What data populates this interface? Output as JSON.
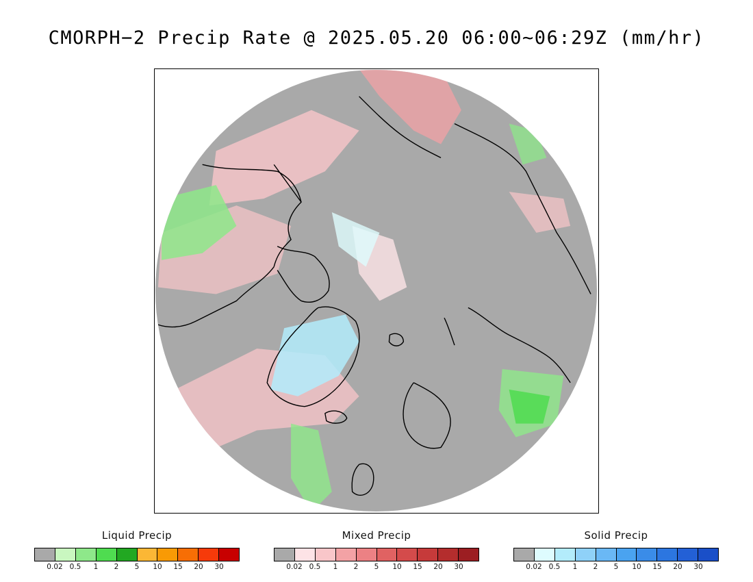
{
  "title": "CMORPH−2 Precip Rate @ 2025.05.20 06:00~06:29Z (mm/hr)",
  "map": {
    "projection": "north polar stereographic",
    "disk_color": "#a9a9a9",
    "coastline_color": "#000000",
    "regions": [
      {
        "name": "alaska-siberia-mixed-band",
        "type": "mixed",
        "color": "#f4c6c6"
      },
      {
        "name": "greenland-solid-area",
        "type": "solid",
        "color": "#cdeef7"
      },
      {
        "name": "scandinavia-liquid-area",
        "type": "liquid",
        "color": "#8ee68e"
      },
      {
        "name": "north-atlantic-mixed-band",
        "type": "mixed",
        "color": "#f6d0d0"
      }
    ]
  },
  "legends": [
    {
      "name": "liquid",
      "title": "Liquid Precip",
      "colors": [
        "#a9a9a9",
        "#c9f7c0",
        "#8ee88a",
        "#4fdc50",
        "#22a822",
        "#fbb735",
        "#f99a05",
        "#f76e05",
        "#f63a0a",
        "#c80000"
      ],
      "ticks": [
        "0.02",
        "0.5",
        "1",
        "2",
        "5",
        "10",
        "15",
        "20",
        "30"
      ]
    },
    {
      "name": "mixed",
      "title": "Mixed Precip",
      "colors": [
        "#a9a9a9",
        "#fde3e6",
        "#f9c6c9",
        "#f3a2a5",
        "#ec8184",
        "#e06262",
        "#d44b4b",
        "#c63a3a",
        "#b42d2d",
        "#9c1e22"
      ],
      "ticks": [
        "0.02",
        "0.5",
        "1",
        "2",
        "5",
        "10",
        "15",
        "20",
        "30"
      ]
    },
    {
      "name": "solid",
      "title": "Solid Precip",
      "colors": [
        "#a9a9a9",
        "#defcfe",
        "#b3ecfb",
        "#8fd1f8",
        "#6ab8f5",
        "#4aa3f0",
        "#3a8ce8",
        "#2c76e0",
        "#2360d6",
        "#1a4fc8"
      ],
      "ticks": [
        "0.02",
        "0.5",
        "1",
        "2",
        "5",
        "10",
        "15",
        "20",
        "30"
      ]
    }
  ]
}
